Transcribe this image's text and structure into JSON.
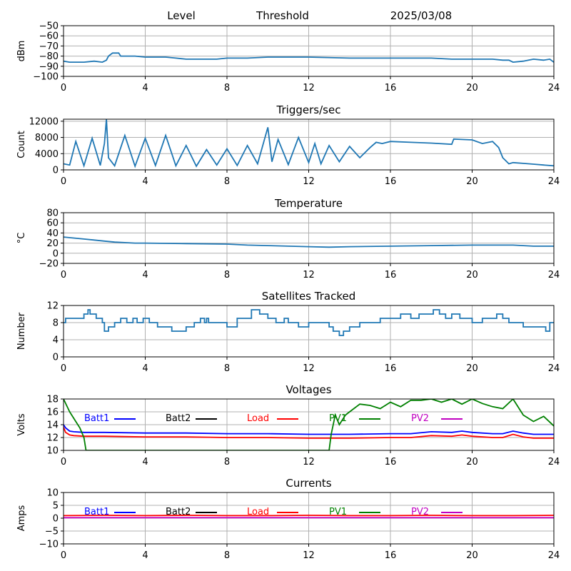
{
  "header": {
    "items": [
      "Level",
      "Threshold",
      "2025/03/08"
    ]
  },
  "colors": {
    "line": "#1f77b4",
    "grid": "#b0b0b0",
    "Batt1": "#0000ff",
    "Batt2": "#000000",
    "Load": "#ff0000",
    "PV1": "#008000",
    "PV2": "#c000c0"
  },
  "chart_data": [
    {
      "type": "line",
      "title": "",
      "ylabel": "dBm",
      "xlim": [
        0,
        24
      ],
      "ylim": [
        -100,
        -50
      ],
      "xticks": [
        "0",
        "4",
        "8",
        "12",
        "16",
        "20",
        "24"
      ],
      "yticks": [
        "−100",
        "−90",
        "−80",
        "−70",
        "−60",
        "−50"
      ],
      "grid": true,
      "series": [
        {
          "x": [
            0,
            0.3,
            1.0,
            1.5,
            1.9,
            2.1,
            2.2,
            2.4,
            2.5,
            2.7,
            2.8,
            3.0,
            3.5,
            4.0,
            5.0,
            5.5,
            6.0,
            7.0,
            7.5,
            8.0,
            9.0,
            10.0,
            11.0,
            11.5,
            12.0,
            14.0,
            16.0,
            18.0,
            19.0,
            20.0,
            21.0,
            21.5,
            21.8,
            22.0,
            22.5,
            23.0,
            23.5,
            23.8,
            24.0
          ],
          "y": [
            -85,
            -86,
            -86,
            -85,
            -86,
            -84,
            -80,
            -77,
            -77,
            -77,
            -80,
            -80,
            -80,
            -81,
            -81,
            -82,
            -83,
            -83,
            -83,
            -82,
            -82,
            -81,
            -81,
            -81,
            -81,
            -82,
            -82,
            -82,
            -83,
            -83,
            -83,
            -84,
            -84,
            -86,
            -85,
            -83,
            -84,
            -83,
            -86
          ]
        }
      ]
    },
    {
      "type": "line",
      "title": "Triggers/sec",
      "ylabel": "Count",
      "xlim": [
        0,
        24
      ],
      "ylim": [
        0,
        12500
      ],
      "xticks": [
        "0",
        "4",
        "8",
        "12",
        "16",
        "20",
        "24"
      ],
      "yticks": [
        "0",
        "4000",
        "8000",
        "12000"
      ],
      "ytick_values": [
        0,
        4000,
        8000,
        12000
      ],
      "grid": true,
      "series": [
        {
          "x": [
            0,
            0.3,
            0.6,
            1.0,
            1.4,
            1.8,
            2.0,
            2.1,
            2.2,
            2.5,
            3.0,
            3.5,
            4.0,
            4.5,
            5.0,
            5.5,
            6.0,
            6.5,
            7.0,
            7.5,
            8.0,
            8.5,
            9.0,
            9.5,
            10.0,
            10.2,
            10.5,
            11.0,
            11.5,
            12.0,
            12.3,
            12.6,
            13.0,
            13.5,
            14.0,
            14.5,
            15.0,
            15.3,
            15.6,
            16.0,
            17.0,
            18.0,
            19.0,
            19.1,
            19.5,
            20.0,
            20.5,
            21.0,
            21.3,
            21.5,
            21.8,
            22.0,
            22.5,
            23.0,
            23.5,
            24.0
          ],
          "y": [
            1500,
            1200,
            7000,
            1000,
            7800,
            1100,
            6500,
            12500,
            3000,
            1000,
            8500,
            900,
            7800,
            1100,
            8500,
            1000,
            6000,
            900,
            5000,
            1200,
            5200,
            1100,
            6000,
            1500,
            10500,
            2000,
            7500,
            1300,
            8000,
            1800,
            6500,
            1500,
            6000,
            2000,
            5800,
            3000,
            5500,
            6800,
            6500,
            7000,
            6800,
            6600,
            6300,
            7600,
            7500,
            7400,
            6500,
            7000,
            5500,
            3000,
            1500,
            1800,
            1600,
            1400,
            1200,
            1000
          ]
        }
      ]
    },
    {
      "type": "line",
      "title": "Temperature",
      "ylabel": "°C",
      "xlim": [
        0,
        24
      ],
      "ylim": [
        -20,
        80
      ],
      "xticks": [
        "0",
        "4",
        "8",
        "12",
        "16",
        "20",
        "24"
      ],
      "yticks": [
        "−20",
        "0",
        "20",
        "40",
        "60",
        "80"
      ],
      "grid": true,
      "series": [
        {
          "x": [
            0,
            0.5,
            1.0,
            1.5,
            2.0,
            2.5,
            3.0,
            3.5,
            4.0,
            6.0,
            8.0,
            9.0,
            10.0,
            12.0,
            13.0,
            14.0,
            16.0,
            18.0,
            20.0,
            22.0,
            23.0,
            24.0
          ],
          "y": [
            32,
            30,
            28,
            26,
            24,
            22,
            21,
            20,
            20,
            19,
            18,
            16,
            15,
            13,
            12,
            13,
            14,
            15,
            16,
            16,
            14,
            14
          ]
        }
      ]
    },
    {
      "type": "line",
      "title": "Satellites Tracked",
      "ylabel": "Number",
      "xlim": [
        0,
        24
      ],
      "ylim": [
        0,
        12
      ],
      "xticks": [
        "0",
        "4",
        "8",
        "12",
        "16",
        "20",
        "24"
      ],
      "yticks": [
        "0",
        "4",
        "8",
        "12"
      ],
      "grid": true,
      "series": [
        {
          "step": true,
          "x": [
            0,
            0.1,
            0.5,
            1.0,
            1.2,
            1.3,
            1.6,
            1.9,
            2.0,
            2.2,
            2.5,
            2.8,
            3.1,
            3.4,
            3.6,
            3.9,
            4.2,
            4.6,
            5.0,
            5.3,
            5.6,
            6.0,
            6.4,
            6.7,
            6.9,
            7.0,
            7.1,
            7.3,
            7.8,
            8.0,
            8.5,
            9.0,
            9.2,
            9.6,
            10.0,
            10.4,
            10.8,
            11.0,
            11.5,
            12.0,
            12.5,
            13.0,
            13.2,
            13.5,
            13.7,
            14.0,
            14.5,
            15.0,
            15.5,
            16.0,
            16.5,
            17.0,
            17.4,
            17.8,
            18.1,
            18.4,
            18.7,
            19.0,
            19.4,
            19.7,
            20.0,
            20.5,
            21.0,
            21.2,
            21.5,
            21.8,
            22.0,
            22.5,
            23.0,
            23.3,
            23.6,
            23.8
          ],
          "y": [
            8,
            9,
            9,
            10,
            11,
            10,
            9,
            8,
            6,
            7,
            8,
            9,
            8,
            9,
            8,
            9,
            8,
            7,
            7,
            6,
            6,
            7,
            8,
            9,
            8,
            9,
            8,
            8,
            8,
            7,
            9,
            9,
            11,
            10,
            9,
            8,
            9,
            8,
            7,
            8,
            8,
            7,
            6,
            5,
            6,
            7,
            8,
            8,
            9,
            9,
            10,
            9,
            10,
            10,
            11,
            10,
            9,
            10,
            9,
            9,
            8,
            9,
            9,
            10,
            9,
            8,
            8,
            7,
            7,
            7,
            6,
            8
          ]
        }
      ]
    },
    {
      "type": "line",
      "title": "Voltages",
      "ylabel": "Volts",
      "xlim": [
        0,
        24
      ],
      "ylim": [
        10,
        18
      ],
      "xticks": [
        "0",
        "4",
        "8",
        "12",
        "16",
        "20",
        "24"
      ],
      "yticks": [
        "10",
        "12",
        "14",
        "16",
        "18"
      ],
      "grid": true,
      "legend": [
        "Batt1",
        "Batt2",
        "Load",
        "PV1",
        "PV2"
      ],
      "series": [
        {
          "name": "Batt1",
          "x": [
            0,
            0.1,
            0.3,
            0.5,
            1.0,
            2.0,
            4.0,
            6.0,
            8.0,
            10.0,
            12.0,
            14.0,
            16.0,
            17.0,
            18.0,
            19.0,
            19.5,
            20.0,
            21.0,
            21.5,
            22.0,
            22.5,
            23.0,
            24.0
          ],
          "y": [
            14.0,
            13.5,
            13.0,
            12.9,
            12.8,
            12.8,
            12.7,
            12.7,
            12.6,
            12.6,
            12.5,
            12.5,
            12.6,
            12.6,
            12.9,
            12.8,
            13.0,
            12.8,
            12.6,
            12.6,
            13.0,
            12.7,
            12.5,
            12.5
          ]
        },
        {
          "name": "Load",
          "x": [
            0,
            0.1,
            0.3,
            0.5,
            1.0,
            2.0,
            4.0,
            6.0,
            8.0,
            10.0,
            12.0,
            14.0,
            16.0,
            17.0,
            18.0,
            19.0,
            19.5,
            20.0,
            21.0,
            21.5,
            22.0,
            22.5,
            23.0,
            24.0
          ],
          "y": [
            13.6,
            12.8,
            12.4,
            12.3,
            12.2,
            12.2,
            12.1,
            12.1,
            12.0,
            12.0,
            11.9,
            11.9,
            12.0,
            12.0,
            12.3,
            12.2,
            12.4,
            12.2,
            12.0,
            12.0,
            12.5,
            12.1,
            11.9,
            11.9
          ]
        },
        {
          "name": "PV1",
          "x": [
            0,
            0.3,
            0.5,
            0.8,
            1.0,
            1.1,
            13.0,
            13.1,
            13.3,
            13.5,
            13.8,
            14.0,
            14.5,
            15.0,
            15.5,
            16.0,
            16.5,
            17.0,
            17.5,
            18.0,
            18.5,
            19.0,
            19.5,
            20.0,
            20.5,
            21.0,
            21.5,
            22.0,
            22.5,
            23.0,
            23.5,
            24.0
          ],
          "y": [
            18.0,
            16.0,
            15.0,
            13.5,
            12.0,
            10.0,
            10.0,
            12.5,
            15.5,
            14.0,
            15.5,
            16.0,
            17.2,
            17.0,
            16.5,
            17.5,
            16.8,
            17.8,
            17.8,
            18.0,
            17.5,
            18.0,
            17.2,
            18.0,
            17.3,
            16.8,
            16.5,
            18.0,
            15.5,
            14.5,
            15.3,
            13.8
          ]
        }
      ]
    },
    {
      "type": "line",
      "title": "Currents",
      "ylabel": "Amps",
      "xlim": [
        0,
        24
      ],
      "ylim": [
        -10,
        10
      ],
      "xticks": [
        "0",
        "4",
        "8",
        "12",
        "16",
        "20",
        "24"
      ],
      "yticks": [
        "−10",
        "−5",
        "0",
        "5",
        "10"
      ],
      "grid": true,
      "legend": [
        "Batt1",
        "Batt2",
        "Load",
        "PV1",
        "PV2"
      ],
      "series": [
        {
          "name": "Load",
          "x": [
            0,
            2,
            4,
            6,
            8,
            10,
            12,
            14,
            16,
            18,
            20,
            22,
            24
          ],
          "y": [
            1.0,
            1.1,
            1.0,
            1.1,
            1.0,
            1.0,
            1.1,
            1.0,
            1.0,
            1.1,
            1.0,
            1.0,
            1.1
          ]
        },
        {
          "name": "PV2",
          "x": [
            0,
            24
          ],
          "y": [
            0.2,
            0.2
          ]
        }
      ]
    }
  ]
}
